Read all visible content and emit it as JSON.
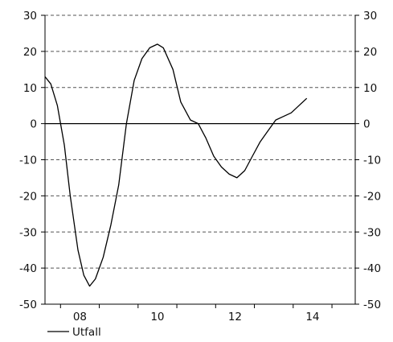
{
  "chart_data": {
    "type": "line",
    "ylim": [
      -50,
      30
    ],
    "yticks": [
      -50,
      -40,
      -30,
      -20,
      -10,
      0,
      10,
      20,
      30
    ],
    "xlim": [
      2007.6,
      2015.6
    ],
    "xticks": [
      {
        "value": 2008,
        "label": "08"
      },
      {
        "value": 2010,
        "label": "10"
      },
      {
        "value": 2012,
        "label": "12"
      },
      {
        "value": 2014,
        "label": "14"
      }
    ],
    "grid": "horizontal dashed",
    "right_axis_mirrors_left": true,
    "legend_position": "bottom-left",
    "series": [
      {
        "name": "Utfall",
        "color": "#000000",
        "points": [
          [
            2007.6,
            13
          ],
          [
            2007.75,
            11
          ],
          [
            2007.92,
            5
          ],
          [
            2008.1,
            -6
          ],
          [
            2008.25,
            -20
          ],
          [
            2008.45,
            -35
          ],
          [
            2008.6,
            -42
          ],
          [
            2008.75,
            -45
          ],
          [
            2008.9,
            -43
          ],
          [
            2009.1,
            -37
          ],
          [
            2009.3,
            -28
          ],
          [
            2009.5,
            -17
          ],
          [
            2009.7,
            0
          ],
          [
            2009.9,
            12
          ],
          [
            2010.1,
            18
          ],
          [
            2010.3,
            21
          ],
          [
            2010.5,
            22
          ],
          [
            2010.65,
            21
          ],
          [
            2010.9,
            15
          ],
          [
            2011.1,
            6
          ],
          [
            2011.35,
            1
          ],
          [
            2011.55,
            0
          ],
          [
            2011.75,
            -4
          ],
          [
            2011.95,
            -9
          ],
          [
            2012.15,
            -12
          ],
          [
            2012.35,
            -14
          ],
          [
            2012.55,
            -15
          ],
          [
            2012.75,
            -13
          ],
          [
            2012.95,
            -9
          ],
          [
            2013.15,
            -5
          ],
          [
            2013.35,
            -2
          ],
          [
            2013.55,
            1
          ],
          [
            2013.75,
            2
          ],
          [
            2013.95,
            3
          ],
          [
            2014.15,
            5
          ],
          [
            2014.35,
            7
          ]
        ]
      }
    ]
  }
}
